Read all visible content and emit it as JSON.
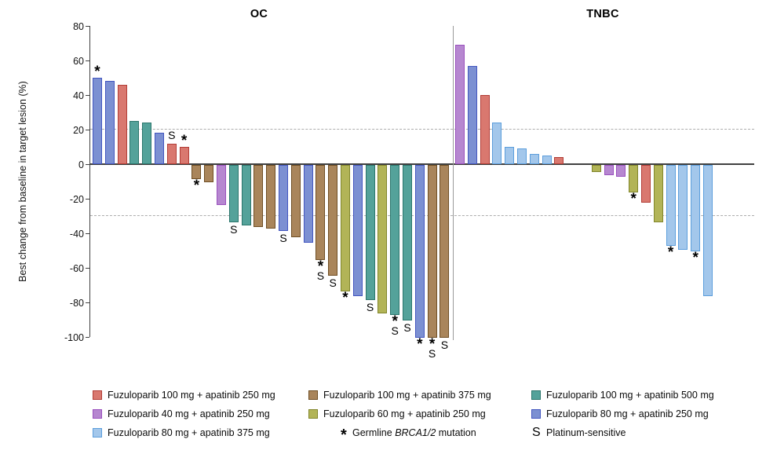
{
  "chart_data": {
    "type": "bar",
    "title": "",
    "ylabel": "Best change from baseline in target lesion (%)",
    "ylim": [
      -100,
      80
    ],
    "yticks": [
      80,
      60,
      40,
      20,
      0,
      -20,
      -40,
      -60,
      -80,
      -100
    ],
    "reference_lines": [
      20,
      -30
    ],
    "grid": "off",
    "legend_position": "bottom",
    "marker_meanings": {
      "*": "Germline BRCA1/2 mutation",
      "S": "Platinum-sensitive"
    },
    "panels": [
      {
        "title": "OC",
        "bars": [
          {
            "group": "indigo",
            "value": 50,
            "markers": [
              "*"
            ]
          },
          {
            "group": "indigo",
            "value": 48
          },
          {
            "group": "red",
            "value": 46
          },
          {
            "group": "teal",
            "value": 25
          },
          {
            "group": "teal",
            "value": 24
          },
          {
            "group": "indigo",
            "value": 18
          },
          {
            "group": "red",
            "value": 12,
            "markers": [
              "S"
            ]
          },
          {
            "group": "red",
            "value": 10,
            "markers": [
              "*"
            ]
          },
          {
            "group": "brown",
            "value": -8,
            "markers": [
              "*"
            ]
          },
          {
            "group": "brown",
            "value": -10
          },
          {
            "group": "purple",
            "value": -23
          },
          {
            "group": "teal",
            "value": -33,
            "markers": [
              "S"
            ]
          },
          {
            "group": "teal",
            "value": -35
          },
          {
            "group": "brown",
            "value": -36
          },
          {
            "group": "brown",
            "value": -37
          },
          {
            "group": "indigo",
            "value": -38,
            "markers": [
              "S"
            ]
          },
          {
            "group": "brown",
            "value": -42
          },
          {
            "group": "indigo",
            "value": -45
          },
          {
            "group": "brown",
            "value": -55,
            "markers": [
              "*",
              "S"
            ]
          },
          {
            "group": "brown",
            "value": -64,
            "markers": [
              "S"
            ]
          },
          {
            "group": "green",
            "value": -73,
            "markers": [
              "*"
            ]
          },
          {
            "group": "indigo",
            "value": -76
          },
          {
            "group": "teal",
            "value": -78,
            "markers": [
              "S"
            ]
          },
          {
            "group": "green",
            "value": -86
          },
          {
            "group": "teal",
            "value": -87,
            "markers": [
              "*",
              "S"
            ]
          },
          {
            "group": "teal",
            "value": -90,
            "markers": [
              "S"
            ]
          },
          {
            "group": "indigo",
            "value": -100,
            "markers": [
              "*"
            ]
          },
          {
            "group": "brown",
            "value": -100,
            "markers": [
              "*",
              "S"
            ]
          },
          {
            "group": "brown",
            "value": -100,
            "markers": [
              "S"
            ]
          }
        ]
      },
      {
        "title": "TNBC",
        "gap_after_bar": 9,
        "gap_slots": 2,
        "bars": [
          {
            "group": "purple",
            "value": 69
          },
          {
            "group": "indigo",
            "value": 57
          },
          {
            "group": "red",
            "value": 40
          },
          {
            "group": "lightblue",
            "value": 24
          },
          {
            "group": "lightblue",
            "value": 10
          },
          {
            "group": "lightblue",
            "value": 9
          },
          {
            "group": "lightblue",
            "value": 6
          },
          {
            "group": "lightblue",
            "value": 5
          },
          {
            "group": "red",
            "value": 4
          },
          {
            "group": "green",
            "value": -4
          },
          {
            "group": "purple",
            "value": -6
          },
          {
            "group": "purple",
            "value": -7
          },
          {
            "group": "green",
            "value": -16,
            "markers": [
              "*"
            ]
          },
          {
            "group": "red",
            "value": -22
          },
          {
            "group": "green",
            "value": -33
          },
          {
            "group": "lightblue",
            "value": -47,
            "markers": [
              "*"
            ]
          },
          {
            "group": "lightblue",
            "value": -49
          },
          {
            "group": "lightblue",
            "value": -50,
            "markers": [
              "*"
            ]
          },
          {
            "group": "lightblue",
            "value": -76
          }
        ]
      }
    ],
    "legend": [
      {
        "type": "swatch",
        "color": "red",
        "label": "Fuzuloparib 100 mg + apatinib 250 mg"
      },
      {
        "type": "swatch",
        "color": "brown",
        "label": "Fuzuloparib 100 mg + apatinib 375 mg"
      },
      {
        "type": "swatch",
        "color": "teal",
        "label": "Fuzuloparib 100 mg + apatinib 500 mg"
      },
      {
        "type": "swatch",
        "color": "purple",
        "label": "Fuzuloparib 40 mg + apatinib 250 mg"
      },
      {
        "type": "swatch",
        "color": "green",
        "label": "Fuzuloparib 60 mg + apatinib 250 mg"
      },
      {
        "type": "swatch",
        "color": "indigo",
        "label": "Fuzuloparib 80 mg + apatinib 250 mg"
      },
      {
        "type": "swatch",
        "color": "lightblue",
        "label": "Fuzuloparib 80 mg + apatinib 375 mg"
      },
      {
        "type": "symbol",
        "symbol": "*",
        "label_parts": [
          {
            "text": "Germline "
          },
          {
            "text": "BRCA1/2",
            "italic": true
          },
          {
            "text": " mutation"
          }
        ]
      },
      {
        "type": "symbol",
        "symbol": "S",
        "label_parts": [
          {
            "text": "Platinum-sensitive"
          }
        ]
      }
    ]
  },
  "colors": {
    "red": {
      "fill": "#D9786F",
      "stroke": "#B23D37"
    },
    "indigo": {
      "fill": "#7C90D2",
      "stroke": "#4356C0"
    },
    "teal": {
      "fill": "#54A29A",
      "stroke": "#2B766C"
    },
    "brown": {
      "fill": "#A9855B",
      "stroke": "#6F4E24"
    },
    "purple": {
      "fill": "#B687D0",
      "stroke": "#9A50BE"
    },
    "green": {
      "fill": "#B2B457",
      "stroke": "#81862B"
    },
    "lightblue": {
      "fill": "#A3C7EB",
      "stroke": "#5C9EDC"
    },
    "axis": "#404040",
    "divider": "#999999",
    "dashed": "#ADADAD"
  }
}
